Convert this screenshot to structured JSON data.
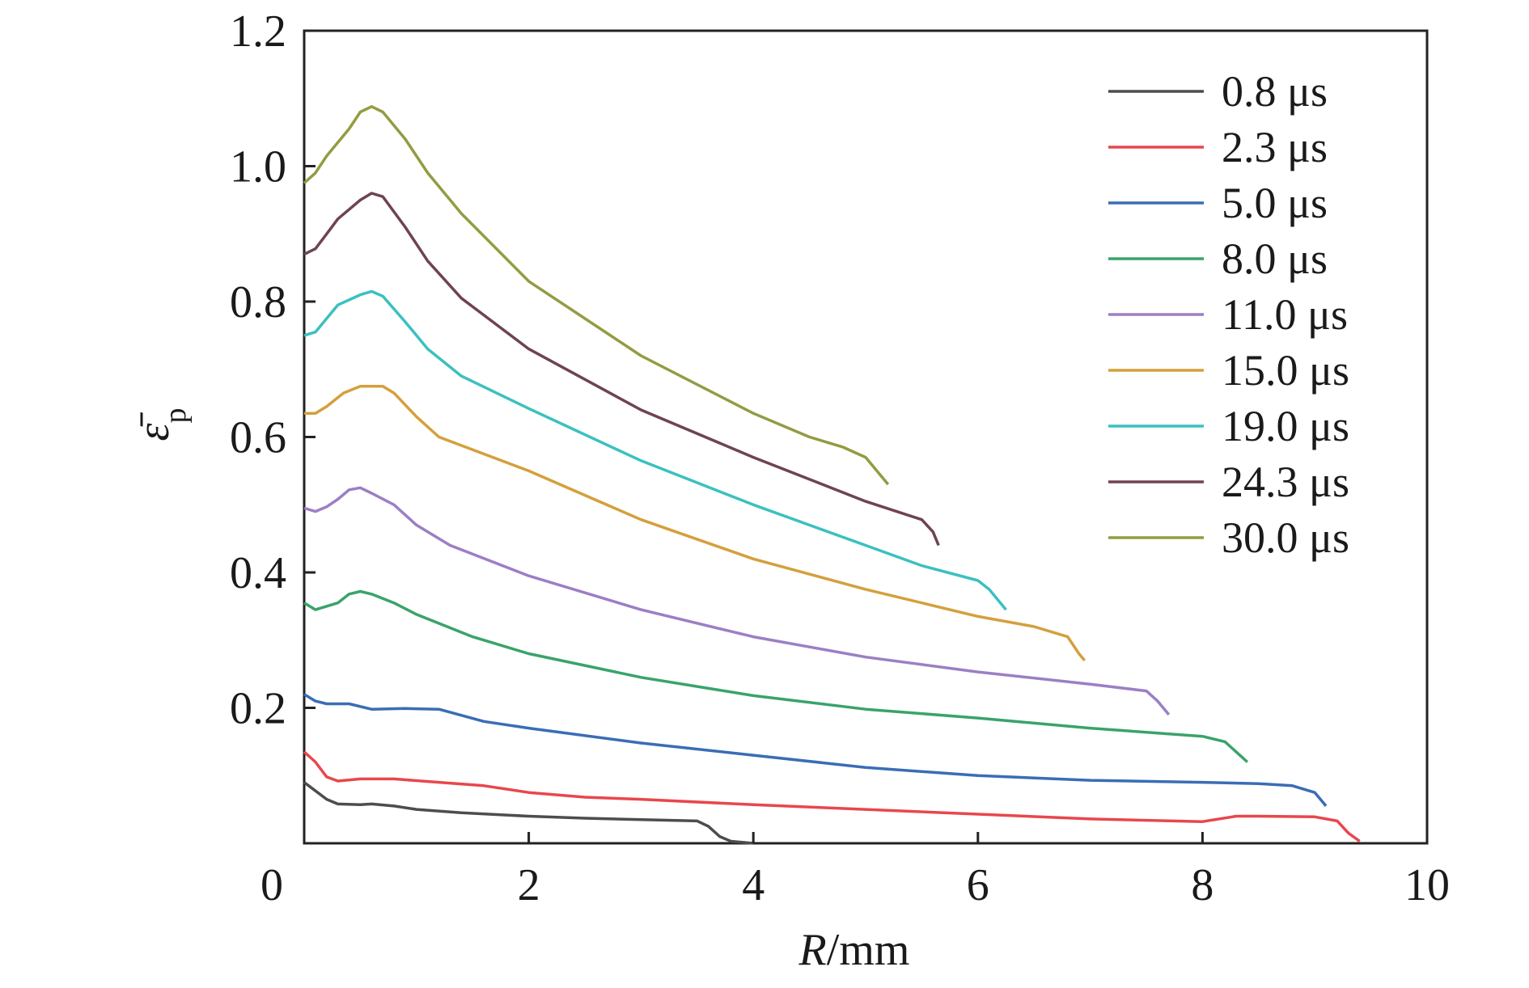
{
  "chart_data": {
    "type": "line",
    "xlabel_italic": "R",
    "xlabel_unit": "/mm",
    "ylabel_symbol": "ε̄",
    "ylabel_subscript": "p",
    "xlim": [
      0,
      10
    ],
    "ylim": [
      0,
      1.2
    ],
    "x_ticks": [
      "0",
      "2",
      "4",
      "6",
      "8",
      "10"
    ],
    "y_ticks": [
      "0.2",
      "0.4",
      "0.6",
      "0.8",
      "1.0",
      "1.2"
    ],
    "legend_position": "top-right",
    "grid": false,
    "series": [
      {
        "name": "0.8 μs",
        "color": "#4d4d4d",
        "points": [
          [
            0,
            0.09
          ],
          [
            0.2,
            0.065
          ],
          [
            0.3,
            0.058
          ],
          [
            0.5,
            0.057
          ],
          [
            0.6,
            0.058
          ],
          [
            0.8,
            0.055
          ],
          [
            1,
            0.05
          ],
          [
            1.4,
            0.045
          ],
          [
            2,
            0.04
          ],
          [
            2.5,
            0.037
          ],
          [
            3.5,
            0.033
          ],
          [
            3.6,
            0.025
          ],
          [
            3.7,
            0.01
          ],
          [
            3.8,
            0.003
          ],
          [
            4.0,
            0.0
          ]
        ]
      },
      {
        "name": "2.3 μs",
        "color": "#e8474c",
        "points": [
          [
            0,
            0.135
          ],
          [
            0.1,
            0.12
          ],
          [
            0.2,
            0.098
          ],
          [
            0.3,
            0.092
          ],
          [
            0.5,
            0.095
          ],
          [
            0.8,
            0.095
          ],
          [
            1.2,
            0.09
          ],
          [
            1.6,
            0.085
          ],
          [
            2,
            0.075
          ],
          [
            2.5,
            0.068
          ],
          [
            3,
            0.065
          ],
          [
            4,
            0.057
          ],
          [
            5,
            0.05
          ],
          [
            6,
            0.043
          ],
          [
            7,
            0.036
          ],
          [
            8,
            0.032
          ],
          [
            8.3,
            0.04
          ],
          [
            8.5,
            0.04
          ],
          [
            9,
            0.039
          ],
          [
            9.2,
            0.033
          ],
          [
            9.3,
            0.015
          ],
          [
            9.4,
            0.003
          ]
        ]
      },
      {
        "name": "5.0 μs",
        "color": "#3a6db5",
        "points": [
          [
            0,
            0.22
          ],
          [
            0.1,
            0.21
          ],
          [
            0.2,
            0.206
          ],
          [
            0.4,
            0.206
          ],
          [
            0.6,
            0.198
          ],
          [
            0.9,
            0.199
          ],
          [
            1.2,
            0.198
          ],
          [
            1.6,
            0.18
          ],
          [
            2,
            0.17
          ],
          [
            3,
            0.148
          ],
          [
            4,
            0.13
          ],
          [
            5,
            0.112
          ],
          [
            6,
            0.1
          ],
          [
            7,
            0.093
          ],
          [
            8,
            0.09
          ],
          [
            8.5,
            0.088
          ],
          [
            8.8,
            0.085
          ],
          [
            9.0,
            0.075
          ],
          [
            9.1,
            0.055
          ]
        ]
      },
      {
        "name": "8.0 μs",
        "color": "#3aa36a",
        "points": [
          [
            0,
            0.355
          ],
          [
            0.1,
            0.345
          ],
          [
            0.3,
            0.355
          ],
          [
            0.4,
            0.368
          ],
          [
            0.5,
            0.372
          ],
          [
            0.6,
            0.368
          ],
          [
            0.8,
            0.355
          ],
          [
            1,
            0.338
          ],
          [
            1.5,
            0.305
          ],
          [
            2,
            0.28
          ],
          [
            3,
            0.245
          ],
          [
            4,
            0.218
          ],
          [
            5,
            0.198
          ],
          [
            6,
            0.185
          ],
          [
            7,
            0.17
          ],
          [
            8,
            0.158
          ],
          [
            8.2,
            0.15
          ],
          [
            8.3,
            0.135
          ],
          [
            8.4,
            0.12
          ]
        ]
      },
      {
        "name": "11.0 μs",
        "color": "#9b7fc5",
        "points": [
          [
            0,
            0.495
          ],
          [
            0.1,
            0.49
          ],
          [
            0.2,
            0.497
          ],
          [
            0.3,
            0.508
          ],
          [
            0.4,
            0.522
          ],
          [
            0.5,
            0.525
          ],
          [
            0.6,
            0.517
          ],
          [
            0.8,
            0.5
          ],
          [
            1,
            0.47
          ],
          [
            1.3,
            0.44
          ],
          [
            2,
            0.395
          ],
          [
            3,
            0.345
          ],
          [
            4,
            0.305
          ],
          [
            5,
            0.275
          ],
          [
            6,
            0.253
          ],
          [
            7,
            0.235
          ],
          [
            7.5,
            0.225
          ],
          [
            7.6,
            0.21
          ],
          [
            7.7,
            0.19
          ]
        ]
      },
      {
        "name": "15.0 μs",
        "color": "#d4a03c",
        "points": [
          [
            0,
            0.635
          ],
          [
            0.1,
            0.635
          ],
          [
            0.2,
            0.645
          ],
          [
            0.35,
            0.665
          ],
          [
            0.5,
            0.675
          ],
          [
            0.7,
            0.675
          ],
          [
            0.8,
            0.665
          ],
          [
            1,
            0.63
          ],
          [
            1.2,
            0.6
          ],
          [
            2,
            0.55
          ],
          [
            3,
            0.478
          ],
          [
            4,
            0.42
          ],
          [
            5,
            0.375
          ],
          [
            6,
            0.335
          ],
          [
            6.5,
            0.32
          ],
          [
            6.8,
            0.305
          ],
          [
            6.9,
            0.28
          ],
          [
            6.95,
            0.27
          ]
        ]
      },
      {
        "name": "19.0 μs",
        "color": "#3cc0c0",
        "points": [
          [
            0,
            0.75
          ],
          [
            0.1,
            0.755
          ],
          [
            0.2,
            0.775
          ],
          [
            0.3,
            0.795
          ],
          [
            0.5,
            0.81
          ],
          [
            0.6,
            0.815
          ],
          [
            0.7,
            0.808
          ],
          [
            0.9,
            0.77
          ],
          [
            1.1,
            0.73
          ],
          [
            1.4,
            0.69
          ],
          [
            2,
            0.642
          ],
          [
            3,
            0.565
          ],
          [
            4,
            0.5
          ],
          [
            5,
            0.44
          ],
          [
            5.5,
            0.41
          ],
          [
            6,
            0.388
          ],
          [
            6.1,
            0.375
          ],
          [
            6.2,
            0.355
          ],
          [
            6.25,
            0.345
          ]
        ]
      },
      {
        "name": "24.3 μs",
        "color": "#6e4450",
        "points": [
          [
            0,
            0.87
          ],
          [
            0.1,
            0.878
          ],
          [
            0.2,
            0.9
          ],
          [
            0.3,
            0.922
          ],
          [
            0.5,
            0.95
          ],
          [
            0.6,
            0.96
          ],
          [
            0.7,
            0.955
          ],
          [
            0.9,
            0.91
          ],
          [
            1.1,
            0.86
          ],
          [
            1.4,
            0.805
          ],
          [
            2,
            0.73
          ],
          [
            3,
            0.64
          ],
          [
            4,
            0.57
          ],
          [
            5,
            0.505
          ],
          [
            5.5,
            0.478
          ],
          [
            5.6,
            0.46
          ],
          [
            5.65,
            0.44
          ]
        ]
      },
      {
        "name": "30.0 μs",
        "color": "#949b42",
        "points": [
          [
            0,
            0.975
          ],
          [
            0.1,
            0.99
          ],
          [
            0.2,
            1.015
          ],
          [
            0.4,
            1.055
          ],
          [
            0.5,
            1.08
          ],
          [
            0.6,
            1.088
          ],
          [
            0.7,
            1.08
          ],
          [
            0.9,
            1.04
          ],
          [
            1.1,
            0.99
          ],
          [
            1.4,
            0.93
          ],
          [
            2,
            0.83
          ],
          [
            3,
            0.72
          ],
          [
            4,
            0.635
          ],
          [
            4.5,
            0.6
          ],
          [
            4.8,
            0.585
          ],
          [
            5.0,
            0.57
          ],
          [
            5.1,
            0.55
          ],
          [
            5.2,
            0.53
          ]
        ]
      }
    ]
  }
}
